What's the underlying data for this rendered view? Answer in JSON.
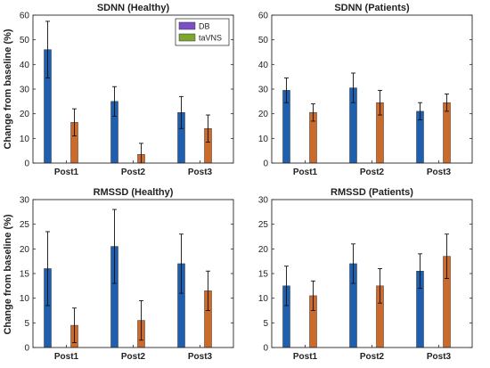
{
  "colors": {
    "db": "#1f5fb0",
    "tavns": "#cc6a2c",
    "legend_db": "#7a4fc4",
    "legend_tavns": "#7ea52f",
    "axis": "#262626",
    "error": "#111111"
  },
  "ylabel": "Change from baseline (%)",
  "legend": {
    "entries": [
      "DB",
      "taVNS"
    ]
  },
  "chart_data": [
    {
      "type": "bar",
      "title": "SDNN (Healthy)",
      "categories": [
        "Post1",
        "Post2",
        "Post3"
      ],
      "ylim": [
        0,
        60
      ],
      "yticks": [
        0,
        10,
        20,
        30,
        40,
        50,
        60
      ],
      "series": [
        {
          "name": "DB",
          "values": [
            46,
            25,
            20.5
          ],
          "error": [
            11.5,
            6,
            6.5
          ]
        },
        {
          "name": "taVNS",
          "values": [
            16.5,
            3.5,
            14
          ],
          "error": [
            5.5,
            4.5,
            5.5
          ]
        }
      ]
    },
    {
      "type": "bar",
      "title": "SDNN (Patients)",
      "categories": [
        "Post1",
        "Post2",
        "Post3"
      ],
      "ylim": [
        0,
        60
      ],
      "yticks": [
        0,
        10,
        20,
        30,
        40,
        50,
        60
      ],
      "series": [
        {
          "name": "DB",
          "values": [
            29.5,
            30.5,
            21
          ],
          "error": [
            5,
            6,
            3.5
          ]
        },
        {
          "name": "taVNS",
          "values": [
            20.5,
            24.5,
            24.5
          ],
          "error": [
            3.5,
            5,
            3.5
          ]
        }
      ]
    },
    {
      "type": "bar",
      "title": "RMSSD (Healthy)",
      "categories": [
        "Post1",
        "Post2",
        "Post3"
      ],
      "ylim": [
        0,
        30
      ],
      "yticks": [
        0,
        5,
        10,
        15,
        20,
        25,
        30
      ],
      "series": [
        {
          "name": "DB",
          "values": [
            16,
            20.5,
            17
          ],
          "error": [
            7.5,
            7.5,
            6
          ]
        },
        {
          "name": "taVNS",
          "values": [
            4.5,
            5.5,
            11.5
          ],
          "error": [
            3.5,
            4,
            4
          ]
        }
      ]
    },
    {
      "type": "bar",
      "title": "RMSSD (Patients)",
      "categories": [
        "Post1",
        "Post2",
        "Post3"
      ],
      "ylim": [
        0,
        30
      ],
      "yticks": [
        0,
        5,
        10,
        15,
        20,
        25,
        30
      ],
      "series": [
        {
          "name": "DB",
          "values": [
            12.5,
            17,
            15.5
          ],
          "error": [
            4,
            4,
            3.5
          ]
        },
        {
          "name": "taVNS",
          "values": [
            10.5,
            12.5,
            18.5
          ],
          "error": [
            3,
            3.5,
            4.5
          ]
        }
      ]
    }
  ]
}
